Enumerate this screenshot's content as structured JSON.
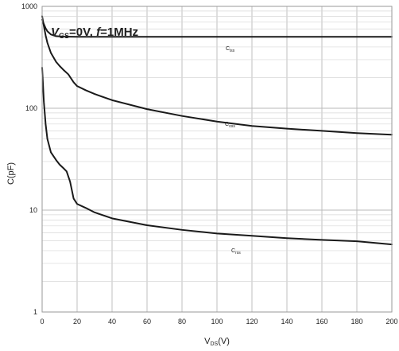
{
  "chart_data": {
    "type": "line",
    "annotation": {
      "v": "V",
      "sub": "GS",
      "rest": "=0V, ",
      "f": "f",
      "rest2": "=1MHz"
    },
    "xlabel": {
      "main": "V",
      "sub": "DS",
      "unit": "(V)"
    },
    "ylabel": "C(pF)",
    "xlim": [
      0,
      200
    ],
    "ylim": [
      1,
      1000
    ],
    "yscale": "log",
    "grid": true,
    "x_ticks": [
      "0",
      "20",
      "40",
      "60",
      "80",
      "100",
      "120",
      "140",
      "160",
      "180",
      "200"
    ],
    "y_ticks": [
      "1",
      "10",
      "100",
      "1000"
    ],
    "series": [
      {
        "name": "Ciss",
        "label_main": "C",
        "label_sub": "iss",
        "x": [
          0,
          1,
          2,
          3,
          5,
          8,
          12,
          20,
          40,
          60,
          80,
          100,
          120,
          140,
          160,
          180,
          200
        ],
        "y": [
          740,
          670,
          610,
          570,
          530,
          510,
          505,
          503,
          502,
          502,
          502,
          502,
          502,
          502,
          502,
          502,
          502
        ]
      },
      {
        "name": "Coss",
        "label_main": "C",
        "label_sub": "oss",
        "x": [
          0,
          1,
          2,
          3,
          5,
          8,
          10,
          12,
          15,
          18,
          20,
          25,
          30,
          40,
          60,
          80,
          100,
          120,
          140,
          160,
          180,
          200
        ],
        "y": [
          800,
          640,
          520,
          440,
          350,
          285,
          260,
          240,
          215,
          180,
          165,
          150,
          138,
          120,
          98,
          84,
          74,
          67,
          63,
          60,
          57,
          55
        ]
      },
      {
        "name": "Crss",
        "label_main": "C",
        "label_sub": "rss",
        "x": [
          0,
          1,
          2,
          3,
          5,
          8,
          10,
          12,
          14,
          16,
          18,
          20,
          25,
          30,
          40,
          60,
          80,
          100,
          120,
          140,
          160,
          180,
          200
        ],
        "y": [
          250,
          115,
          70,
          50,
          37,
          31,
          28,
          26,
          24,
          19,
          13,
          11.5,
          10.5,
          9.5,
          8.3,
          7.1,
          6.4,
          5.9,
          5.6,
          5.3,
          5.1,
          4.95,
          4.6
        ]
      }
    ]
  }
}
